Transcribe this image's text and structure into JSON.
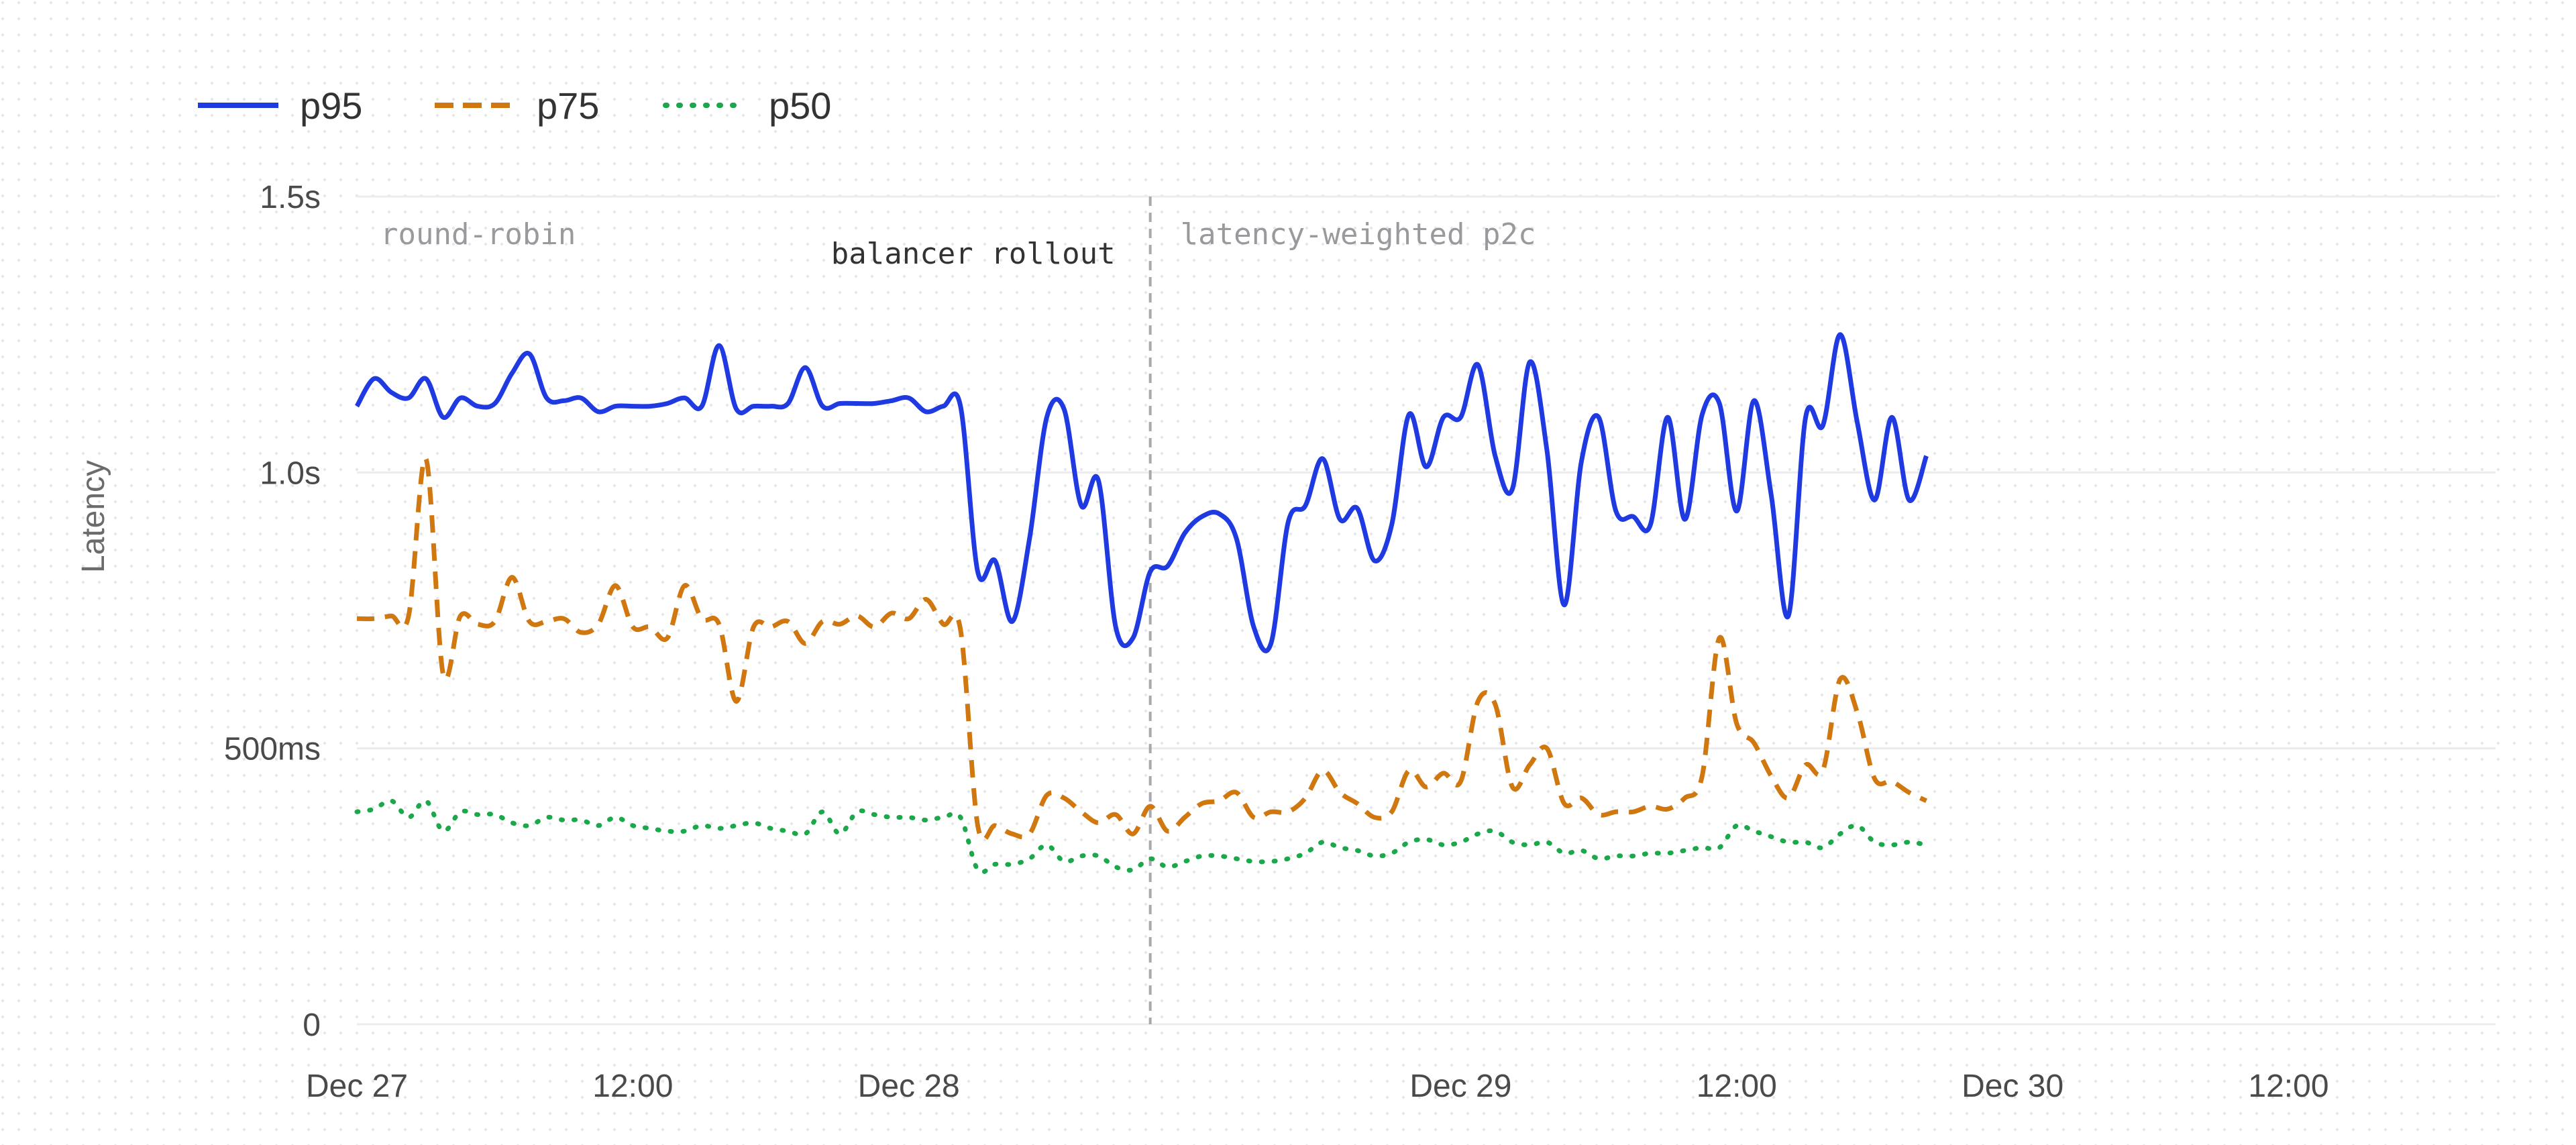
{
  "chart_data": {
    "type": "line",
    "title": "",
    "xlabel": "",
    "ylabel": "Latency",
    "y_unit": "ms",
    "ylim": [
      0,
      1500
    ],
    "y_ticks": [
      {
        "value": 0,
        "label": "0"
      },
      {
        "value": 500,
        "label": "500ms"
      },
      {
        "value": 1000,
        "label": "1.0s"
      },
      {
        "value": 1500,
        "label": "1.5s"
      }
    ],
    "xlim": [
      "2024-12-27T00:00",
      "2024-12-30T21:00"
    ],
    "x_ticks": [
      {
        "value": "2024-12-27T00:00",
        "label": "Dec 27"
      },
      {
        "value": "2024-12-27T12:00",
        "label": "12:00"
      },
      {
        "value": "2024-12-28T00:00",
        "label": "Dec 28"
      },
      {
        "value": "2024-12-29T00:00",
        "label": "Dec 29"
      },
      {
        "value": "2024-12-29T12:00",
        "label": "12:00"
      },
      {
        "value": "2024-12-30T00:00",
        "label": "Dec 30"
      },
      {
        "value": "2024-12-30T12:00",
        "label": "12:00"
      }
    ],
    "grid": true,
    "legend_position": "top-left",
    "sample_interval_hours": 0.75,
    "x_start": "2024-12-27T00:00",
    "series": [
      {
        "name": "p95",
        "color": "#1f3ae0",
        "style": "solid",
        "values": [
          1120,
          1170,
          1145,
          1135,
          1170,
          1100,
          1135,
          1120,
          1125,
          1180,
          1215,
          1135,
          1130,
          1135,
          1110,
          1120,
          1120,
          1120,
          1125,
          1135,
          1120,
          1230,
          1115,
          1120,
          1120,
          1125,
          1190,
          1120,
          1125,
          1125,
          1125,
          1130,
          1135,
          1110,
          1120,
          1120,
          820,
          840,
          730,
          880,
          1100,
          1115,
          940,
          985,
          720,
          700,
          820,
          830,
          890,
          920,
          925,
          880,
          720,
          690,
          910,
          940,
          1025,
          915,
          935,
          840,
          905,
          1105,
          1010,
          1100,
          1100,
          1195,
          1030,
          970,
          1200,
          1040,
          760,
          1020,
          1100,
          930,
          920,
          905,
          1100,
          915,
          1105,
          1125,
          930,
          1130,
          960,
          740,
          1100,
          1085,
          1250,
          1090,
          950,
          1100,
          950,
          1030
        ]
      },
      {
        "name": "p75",
        "color": "#d0780f",
        "style": "dashed",
        "values": [
          735,
          735,
          740,
          740,
          1025,
          635,
          740,
          725,
          730,
          810,
          730,
          730,
          735,
          710,
          725,
          795,
          720,
          720,
          700,
          795,
          735,
          725,
          585,
          720,
          720,
          730,
          690,
          730,
          725,
          740,
          720,
          745,
          735,
          770,
          725,
          715,
          360,
          360,
          345,
          345,
          415,
          410,
          385,
          365,
          380,
          345,
          395,
          350,
          375,
          400,
          405,
          420,
          375,
          385,
          385,
          410,
          460,
          420,
          400,
          375,
          385,
          460,
          430,
          455,
          440,
          585,
          580,
          430,
          470,
          500,
          400,
          410,
          380,
          385,
          385,
          395,
          390,
          410,
          450,
          700,
          545,
          510,
          450,
          410,
          470,
          460,
          625,
          565,
          445,
          440,
          420,
          405
        ]
      },
      {
        "name": "p50",
        "color": "#1aa84a",
        "style": "dotted",
        "values": [
          385,
          390,
          405,
          375,
          405,
          350,
          385,
          380,
          380,
          365,
          360,
          375,
          370,
          370,
          360,
          375,
          360,
          355,
          350,
          350,
          360,
          355,
          360,
          365,
          355,
          350,
          345,
          385,
          345,
          385,
          380,
          375,
          375,
          370,
          375,
          375,
          280,
          290,
          290,
          300,
          325,
          295,
          305,
          305,
          285,
          280,
          300,
          285,
          295,
          305,
          305,
          300,
          295,
          295,
          300,
          310,
          330,
          320,
          315,
          305,
          310,
          330,
          335,
          325,
          330,
          345,
          350,
          330,
          325,
          330,
          310,
          315,
          300,
          305,
          305,
          310,
          310,
          315,
          320,
          320,
          360,
          350,
          340,
          330,
          330,
          320,
          345,
          360,
          330,
          325,
          330,
          325
        ]
      }
    ],
    "annotations": [
      {
        "type": "vline",
        "x": "2024-12-28T10:30",
        "label": "balancer rollout"
      },
      {
        "type": "region-label",
        "x": "2024-12-27T00:00",
        "label": "round-robin"
      },
      {
        "type": "region-label",
        "x": "2024-12-28T10:30",
        "label": "latency-weighted p2c"
      }
    ]
  }
}
